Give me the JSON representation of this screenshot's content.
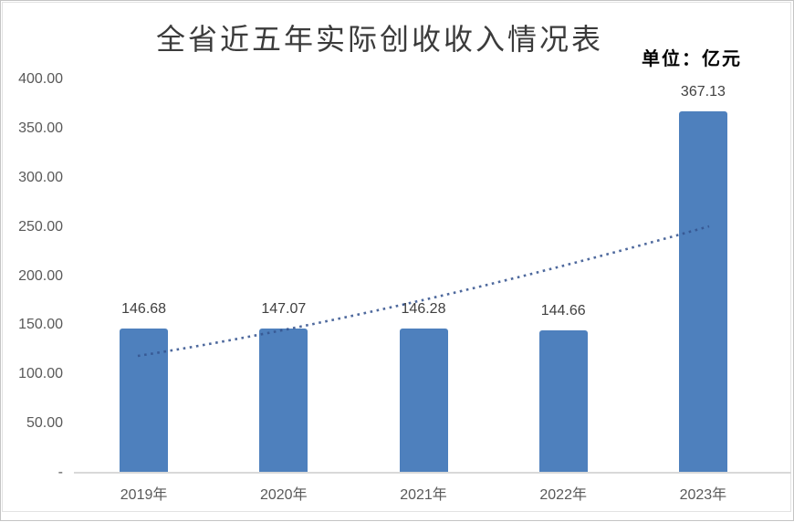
{
  "chart_data": {
    "type": "bar",
    "title": "全省近五年实际创收收入情况表",
    "unit_label": "单位：亿元",
    "categories": [
      "2019年",
      "2020年",
      "2021年",
      "2022年",
      "2023年"
    ],
    "values": [
      146.68,
      147.07,
      146.28,
      144.66,
      367.13
    ],
    "data_labels": [
      "146.68",
      "147.07",
      "146.28",
      "144.66",
      "367.13"
    ],
    "y_axis": {
      "tick_labels": [
        "400.00",
        "350.00",
        "300.00",
        "250.00",
        "200.00",
        "150.00",
        "100.00",
        "50.00",
        "-"
      ],
      "min": 0,
      "max": 400,
      "tick_step": 50
    },
    "grid": false,
    "legend": false,
    "trendline": {
      "style": "dotted",
      "shape": "curved-upward",
      "approx_start_value": 120,
      "approx_end_value": 250,
      "color": "#35548f"
    },
    "colors": {
      "bar": "#4e80bd",
      "data_label": "#404040",
      "axis_label": "#595959",
      "axis_line": "#d9d9d9",
      "title": "#3b3b3b",
      "unit_label": "#000000"
    }
  }
}
